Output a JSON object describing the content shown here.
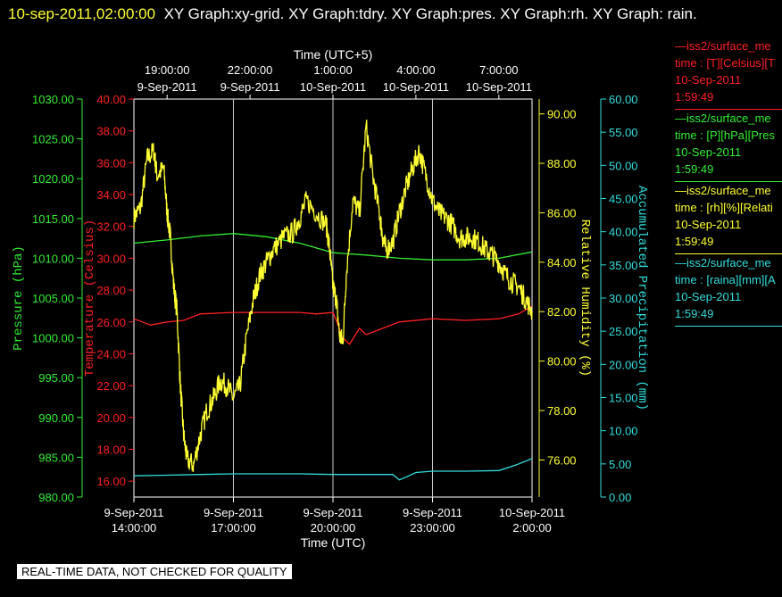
{
  "title": {
    "timestamp": "10-sep-2011,02:00:00",
    "rest": "XY Graph:xy-grid.  XY Graph:tdry.  XY Graph:pres.  XY Graph:rh.  XY Graph: rain."
  },
  "notice": "REAL-TIME DATA, NOT CHECKED FOR QUALITY",
  "legend": [
    {
      "color": "#ff2020",
      "lines": [
        "—iss2/surface_me",
        "time : [T][Celsius][T",
        "10-Sep-2011",
        "1:59:49"
      ]
    },
    {
      "color": "#33ee33",
      "lines": [
        "—iss2/surface_me",
        "time : [P][hPa][Pres",
        "10-Sep-2011",
        "1:59:49"
      ]
    },
    {
      "color": "#ffff33",
      "lines": [
        "—iss2/surface_me",
        "time : [rh][%][Relati",
        "10-Sep-2011",
        "1:59:49"
      ]
    },
    {
      "color": "#33dddd",
      "lines": [
        "—iss2/surface_me",
        "time : [raina][mm][A",
        "10-Sep-2011",
        "1:59:49"
      ]
    }
  ],
  "chart_data": {
    "type": "line",
    "x_bottom": {
      "label": "Time (UTC)",
      "ticks": [
        [
          "9-Sep-2011",
          "14:00:00"
        ],
        [
          "9-Sep-2011",
          "17:00:00"
        ],
        [
          "9-Sep-2011",
          "20:00:00"
        ],
        [
          "9-Sep-2011",
          "23:00:00"
        ],
        [
          "10-Sep-2011",
          "2:00:00"
        ]
      ]
    },
    "x_top": {
      "label": "Time (UTC+5)",
      "ticks": [
        [
          "19:00:00",
          "9-Sep-2011"
        ],
        [
          "22:00:00",
          "9-Sep-2011"
        ],
        [
          "1:00:00",
          "10-Sep-2011"
        ],
        [
          "4:00:00",
          "10-Sep-2011"
        ],
        [
          "7:00:00",
          "10-Sep-2011"
        ]
      ]
    },
    "xlim_hours": [
      0,
      12
    ],
    "grid": "vertical at major x ticks",
    "axes": {
      "pressure": {
        "label": "Pressure (hPa)",
        "color": "#33ee33",
        "ylim": [
          980,
          1030
        ],
        "ticks": [
          "980.00",
          "985.00",
          "990.00",
          "995.00",
          "1000.00",
          "1005.00",
          "1010.00",
          "1015.00",
          "1020.00",
          "1025.00",
          "1030.00"
        ]
      },
      "temperature": {
        "label": "Temperature (Celsius)",
        "color": "#ff2020",
        "ylim": [
          15.0,
          40.0
        ],
        "ticks": [
          "16.00",
          "18.00",
          "20.00",
          "22.00",
          "24.00",
          "26.00",
          "28.00",
          "30.00",
          "32.00",
          "34.00",
          "36.00",
          "38.00",
          "40.00"
        ]
      },
      "humidity": {
        "label": "Relative Humidity (%)",
        "color": "#ffff33",
        "ylim": [
          74.5,
          90.6
        ],
        "ticks": [
          "76.00",
          "78.00",
          "80.00",
          "82.00",
          "84.00",
          "86.00",
          "88.00",
          "90.00"
        ]
      },
      "precip": {
        "label": "Accumulated Precipitation (mm)",
        "color": "#33dddd",
        "ylim": [
          0,
          60
        ],
        "ticks": [
          "0.00",
          "5.00",
          "10.00",
          "15.00",
          "20.00",
          "25.00",
          "30.00",
          "35.00",
          "40.00",
          "45.00",
          "50.00",
          "55.00",
          "60.00"
        ]
      }
    },
    "series": [
      {
        "axis": "temperature",
        "color": "#ff2020",
        "x": [
          0,
          0.5,
          1,
          1.5,
          2,
          3,
          4,
          5,
          5.5,
          6,
          6.1,
          6.3,
          6.5,
          6.8,
          7,
          7.5,
          8,
          9,
          10,
          11,
          11.6,
          12
        ],
        "y": [
          26.2,
          25.8,
          26.0,
          26.1,
          26.5,
          26.6,
          26.6,
          26.6,
          26.5,
          26.6,
          26.1,
          25.0,
          24.6,
          25.6,
          25.2,
          25.6,
          26.0,
          26.2,
          26.1,
          26.2,
          26.5,
          27.0
        ]
      },
      {
        "axis": "pressure",
        "color": "#33ee33",
        "x": [
          0,
          1,
          2,
          3,
          4,
          5,
          6,
          7,
          8,
          9,
          10,
          11,
          12
        ],
        "y": [
          1011.9,
          1012.3,
          1012.8,
          1013.1,
          1012.7,
          1011.9,
          1010.7,
          1010.4,
          1010.0,
          1009.8,
          1009.8,
          1010.0,
          1010.8
        ]
      },
      {
        "axis": "precip",
        "color": "#33dddd",
        "x": [
          0,
          1,
          2,
          3,
          4,
          5,
          6,
          7,
          7.8,
          8.0,
          8.2,
          8.5,
          9,
          10,
          11,
          11.5,
          12
        ],
        "y": [
          3.2,
          3.3,
          3.4,
          3.5,
          3.5,
          3.5,
          3.4,
          3.4,
          3.4,
          2.6,
          3.0,
          3.7,
          3.9,
          3.9,
          4.0,
          4.8,
          5.8
        ]
      },
      {
        "axis": "humidity",
        "color": "#ffff33",
        "noisy": true,
        "x": [
          0,
          0.2,
          0.4,
          0.6,
          0.7,
          0.9,
          1.0,
          1.1,
          1.2,
          1.3,
          1.4,
          1.5,
          1.6,
          1.8,
          2.0,
          2.2,
          2.4,
          2.6,
          2.8,
          3.0,
          3.2,
          3.4,
          3.6,
          3.8,
          4.0,
          4.2,
          4.5,
          4.8,
          5.0,
          5.2,
          5.5,
          5.8,
          5.9,
          6.0,
          6.1,
          6.2,
          6.3,
          6.4,
          6.6,
          6.8,
          7.0,
          7.2,
          7.4,
          7.5,
          7.6,
          7.8,
          8.0,
          8.2,
          8.4,
          8.6,
          8.8,
          9.0,
          9.2,
          9.4,
          9.6,
          9.8,
          10.0,
          10.2,
          10.4,
          10.6,
          10.8,
          11.0,
          11.2,
          11.4,
          11.6,
          11.8,
          12.0
        ],
        "y": [
          85.8,
          86.2,
          88.2,
          88.5,
          87.5,
          87.8,
          86.0,
          85.0,
          83.0,
          82.0,
          79.0,
          77.0,
          76.0,
          75.8,
          77.0,
          78.0,
          78.5,
          79.2,
          79.0,
          78.5,
          79.0,
          81.0,
          82.5,
          83.5,
          84.0,
          84.5,
          85.0,
          85.2,
          85.8,
          86.5,
          86.0,
          85.5,
          84.5,
          83.0,
          82.5,
          81.0,
          80.8,
          83.5,
          86.5,
          86.0,
          89.5,
          87.5,
          86.0,
          85.0,
          84.5,
          84.8,
          86.0,
          87.0,
          87.8,
          88.5,
          87.5,
          86.5,
          86.0,
          85.8,
          85.5,
          85.0,
          85.0,
          85.0,
          84.8,
          84.5,
          84.3,
          84.0,
          83.5,
          83.2,
          83.0,
          82.5,
          82.0
        ]
      }
    ]
  }
}
